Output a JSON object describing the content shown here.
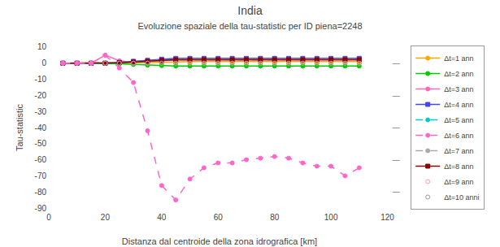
{
  "chart_data": {
    "type": "line",
    "title": "India",
    "subtitle": "Evoluzione spaziale della tau-statistic per ID piena=2248",
    "x_label": "Distanza dal centroide della zona idrografica [km]",
    "y_label": "Tau-statistic",
    "xlim": [
      0,
      121
    ],
    "ylim": [
      -91,
      11
    ],
    "xticks": [
      0,
      20,
      40,
      60,
      80,
      100,
      120
    ],
    "yticks": [
      10,
      0,
      -10,
      -20,
      -30,
      -40,
      -50,
      -60,
      -70,
      -80,
      -90
    ],
    "y2lim": [
      -91,
      11
    ],
    "y2ticks": [
      {
        "value": 0,
        "label": "—"
      },
      {
        "value": -20,
        "label": "—"
      },
      {
        "value": -40,
        "label": "—"
      },
      {
        "value": -60,
        "label": "—"
      },
      {
        "value": -80,
        "label": "—"
      }
    ],
    "grid": false,
    "legend": "right",
    "x": [
      5,
      10,
      15,
      20,
      25,
      30,
      35,
      40,
      45,
      50,
      55,
      60,
      65,
      70,
      75,
      80,
      85,
      90,
      95,
      100,
      105,
      110
    ],
    "series": [
      {
        "name": "Δt=1 ann",
        "color": "#FFA500",
        "marker": "circle",
        "line_style": "solid",
        "values": [
          0,
          0,
          0,
          0,
          0,
          0,
          0.3,
          0.5,
          0.8,
          1.0,
          1.0,
          1.0,
          1.0,
          1.0,
          1.0,
          1.0,
          1.0,
          1.0,
          1.0,
          1.0,
          1.0,
          1.0
        ]
      },
      {
        "name": "Δt=2 ann",
        "color": "#00CC00",
        "marker": "circle",
        "line_style": "solid",
        "values": [
          0,
          0,
          0,
          0,
          -0.3,
          -0.8,
          -1.2,
          -1.5,
          -1.8,
          -1.8,
          -1.8,
          -1.8,
          -1.8,
          -1.8,
          -1.8,
          -1.8,
          -1.8,
          -1.8,
          -1.8,
          -1.8,
          -1.8,
          -1.8
        ]
      },
      {
        "name": "Δt=3 ann",
        "color": "#FF69B4",
        "marker": "circle",
        "line_style": "solid",
        "values": [
          0,
          0,
          0,
          5,
          1.5,
          0.5,
          1.0,
          1.5,
          2.0,
          2.0,
          2.0,
          2.0,
          2.0,
          2.0,
          2.0,
          2.0,
          2.0,
          2.0,
          2.0,
          2.0,
          2.0,
          2.0
        ]
      },
      {
        "name": "Δt=4 ann",
        "color": "#4444FF",
        "marker": "square",
        "line_style": "solid",
        "values": [
          0,
          0,
          0,
          0,
          0.5,
          1.2,
          1.8,
          2.5,
          3.0,
          3.0,
          3.0,
          3.0,
          3.0,
          3.0,
          3.0,
          3.0,
          3.0,
          3.0,
          3.0,
          3.0,
          3.0,
          3.0
        ]
      },
      {
        "name": "Δt=5 ann",
        "color": "#00CCCC",
        "marker": "circle",
        "line_style": "dashed",
        "values": [
          0,
          0,
          0,
          0,
          0.3,
          0.8,
          1.2,
          1.8,
          2.2,
          2.2,
          2.2,
          2.2,
          2.2,
          2.2,
          2.2,
          2.2,
          2.2,
          2.2,
          2.2,
          2.2,
          2.2,
          2.2
        ]
      },
      {
        "name": "Δt=6 ann",
        "color": "#FF66CC",
        "marker": "circle",
        "line_style": "dashed",
        "values": [
          0,
          0,
          0,
          5,
          -3,
          -12,
          -42,
          -76,
          -85,
          -72,
          -65,
          -62,
          -62,
          -60,
          -59,
          -58,
          -59,
          -62,
          -64,
          -64,
          -70,
          -65
        ]
      },
      {
        "name": "Δt=7 ann",
        "color": "#AAAAAA",
        "marker": "circle",
        "line_style": "dashed",
        "values": [
          0,
          0,
          0,
          0,
          0.3,
          0.8,
          1.2,
          1.8,
          2.2,
          2.2,
          2.2,
          2.2,
          2.2,
          2.2,
          2.2,
          2.2,
          2.2,
          2.2,
          2.2,
          2.2,
          2.2,
          2.2
        ]
      },
      {
        "name": "Δt=8 ann",
        "color": "#8B0000",
        "marker": "square",
        "line_style": "solid",
        "values": [
          0,
          0,
          0,
          0,
          0.3,
          0.8,
          1.2,
          1.8,
          2.2,
          2.2,
          2.2,
          2.2,
          2.2,
          2.2,
          2.2,
          2.2,
          2.2,
          2.2,
          2.2,
          2.2,
          2.2,
          2.2
        ]
      },
      {
        "name": "Δt=9 ann",
        "color": "#FF9999",
        "marker": "circle",
        "line_style": "none",
        "values": [
          0,
          0,
          0,
          0,
          0,
          0,
          0,
          0,
          0,
          0,
          0,
          0,
          0,
          0,
          0,
          0,
          0,
          0,
          0,
          0,
          0,
          0
        ]
      },
      {
        "name": "Δt=10 anni",
        "color": "#999999",
        "marker": "circle",
        "line_style": "none",
        "values": [
          0,
          0,
          0,
          0,
          0,
          0,
          0,
          0,
          0,
          0,
          0,
          0,
          0,
          0,
          0,
          0,
          0,
          0,
          0,
          0,
          0,
          0
        ]
      }
    ]
  }
}
